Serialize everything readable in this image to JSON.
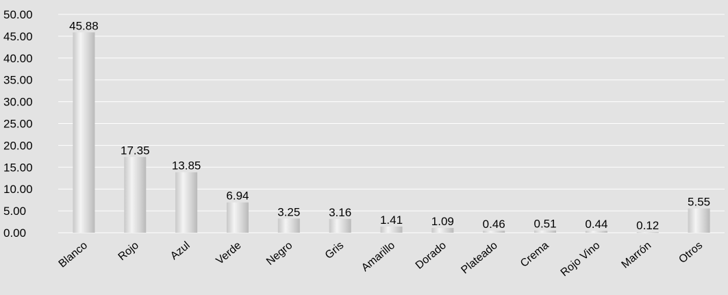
{
  "chart_data": {
    "type": "bar",
    "title": "",
    "xlabel": "",
    "ylabel": "",
    "categories": [
      "Blanco",
      "Rojo",
      "Azul",
      "Verde",
      "Negro",
      "Gris",
      "Amarillo",
      "Dorado",
      "Plateado",
      "Crema",
      "Rojo Vino",
      "Marrón",
      "Otros"
    ],
    "values": [
      45.88,
      17.35,
      13.85,
      6.94,
      3.25,
      3.16,
      1.41,
      1.09,
      0.46,
      0.51,
      0.44,
      0.12,
      5.55
    ],
    "value_labels": [
      "45.88",
      "17.35",
      "13.85",
      "6.94",
      "3.25",
      "3.16",
      "1.41",
      "1.09",
      "0.46",
      "0.51",
      "0.44",
      "0.12",
      "5.55"
    ],
    "y_ticks": [
      "0.00",
      "5.00",
      "10.00",
      "15.00",
      "20.00",
      "25.00",
      "30.00",
      "35.00",
      "40.00",
      "45.00",
      "50.00"
    ],
    "ylim": [
      0,
      50
    ],
    "grid": true,
    "legend": "none",
    "colors": {
      "background": "#e3e3e3",
      "gridline": "#ffffff",
      "bar_light": "#f4f4f4",
      "bar_dark": "#b9b9b9"
    }
  }
}
